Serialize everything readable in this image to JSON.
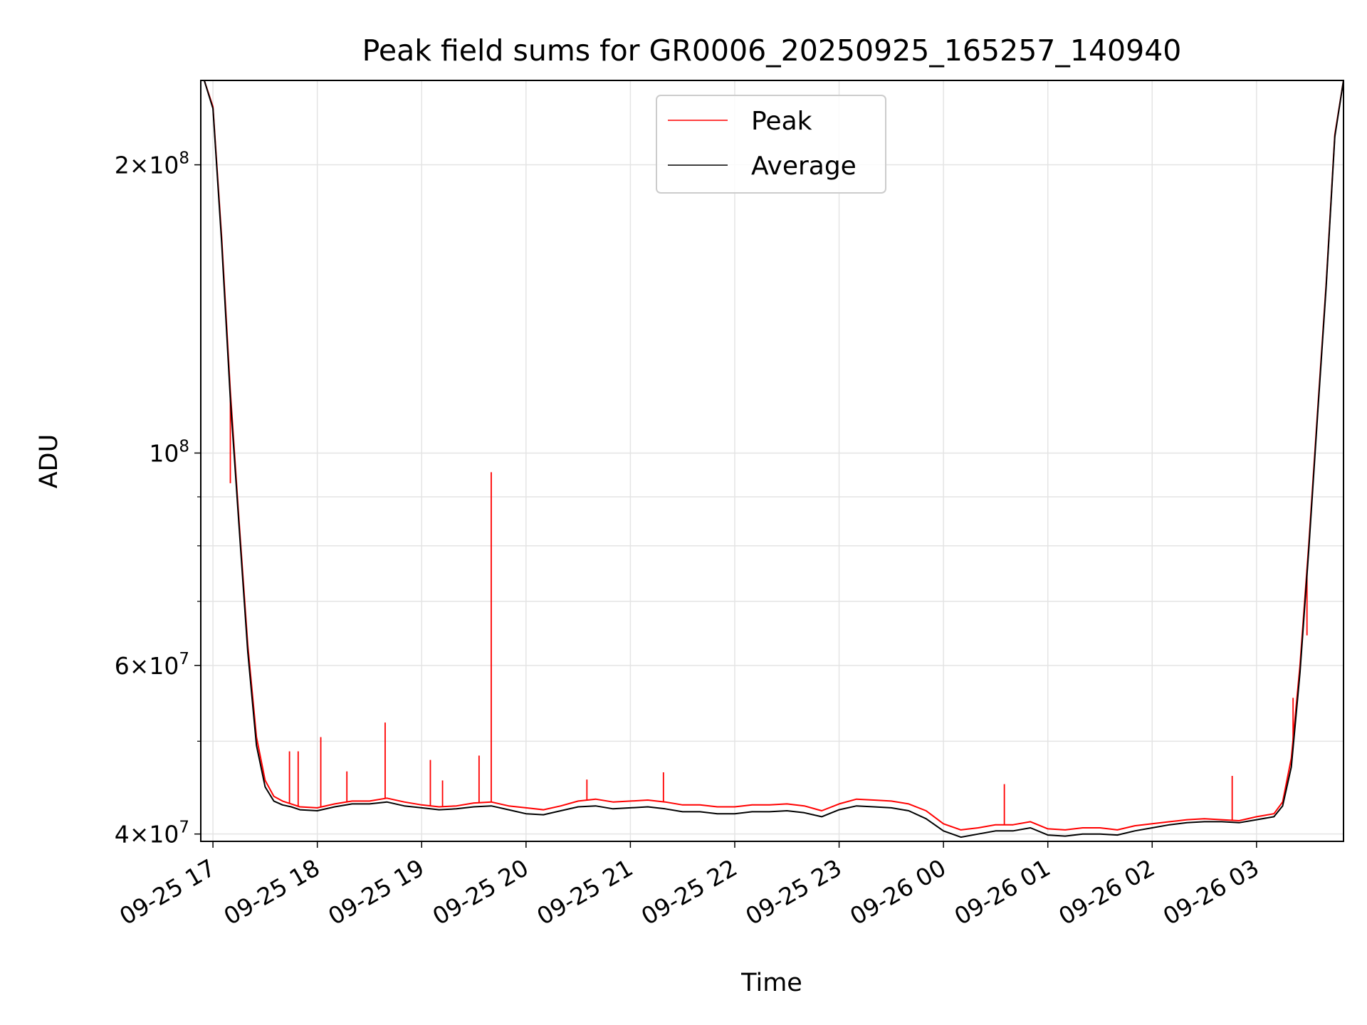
{
  "chart_data": {
    "type": "line",
    "title": "Peak field sums for GR0006_20250925_165257_140940",
    "xlabel": "Time",
    "ylabel": "ADU",
    "yscale": "log",
    "ylim": [
      39300000,
      245000000
    ],
    "xlim": [
      "2025-09-25 16:53",
      "2025-09-26 03:50"
    ],
    "grid": true,
    "legend_position": "top-center",
    "x_ticks": [
      "09-25 17",
      "09-25 18",
      "09-25 19",
      "09-25 20",
      "09-25 21",
      "09-25 22",
      "09-25 23",
      "09-26 00",
      "09-26 01",
      "09-26 02",
      "09-26 03"
    ],
    "y_ticks": [
      {
        "value": 40000000,
        "mant": "4",
        "exp": "7"
      },
      {
        "value": 60000000,
        "mant": "6",
        "exp": "7"
      },
      {
        "value": 100000000,
        "mant": "",
        "exp": "8"
      },
      {
        "value": 200000000,
        "mant": "2",
        "exp": "8"
      }
    ],
    "series": [
      {
        "name": "Peak",
        "color": "#ff0000",
        "x": [
          "2025-09-25 16:55",
          "2025-09-25 17:00",
          "2025-09-25 17:05",
          "2025-09-25 17:10",
          "2025-09-25 17:15",
          "2025-09-25 17:20",
          "2025-09-25 17:25",
          "2025-09-25 17:30",
          "2025-09-25 17:35",
          "2025-09-25 17:40",
          "2025-09-25 17:45",
          "2025-09-25 17:50",
          "2025-09-25 18:00",
          "2025-09-25 18:10",
          "2025-09-25 18:20",
          "2025-09-25 18:30",
          "2025-09-25 18:40",
          "2025-09-25 18:50",
          "2025-09-25 19:00",
          "2025-09-25 19:10",
          "2025-09-25 19:20",
          "2025-09-25 19:30",
          "2025-09-25 19:40",
          "2025-09-25 19:50",
          "2025-09-25 20:00",
          "2025-09-25 20:10",
          "2025-09-25 20:20",
          "2025-09-25 20:30",
          "2025-09-25 20:40",
          "2025-09-25 20:50",
          "2025-09-25 21:00",
          "2025-09-25 21:10",
          "2025-09-25 21:20",
          "2025-09-25 21:30",
          "2025-09-25 21:40",
          "2025-09-25 21:50",
          "2025-09-25 22:00",
          "2025-09-25 22:10",
          "2025-09-25 22:20",
          "2025-09-25 22:30",
          "2025-09-25 22:40",
          "2025-09-25 22:50",
          "2025-09-25 23:00",
          "2025-09-25 23:10",
          "2025-09-25 23:20",
          "2025-09-25 23:30",
          "2025-09-25 23:40",
          "2025-09-25 23:50",
          "2025-09-26 00:00",
          "2025-09-26 00:10",
          "2025-09-26 00:20",
          "2025-09-26 00:30",
          "2025-09-26 00:40",
          "2025-09-26 00:50",
          "2025-09-26 01:00",
          "2025-09-26 01:10",
          "2025-09-26 01:20",
          "2025-09-26 01:30",
          "2025-09-26 01:40",
          "2025-09-26 01:50",
          "2025-09-26 02:00",
          "2025-09-26 02:10",
          "2025-09-26 02:20",
          "2025-09-26 02:30",
          "2025-09-26 02:40",
          "2025-09-26 02:50",
          "2025-09-26 03:00",
          "2025-09-26 03:10",
          "2025-09-26 03:15",
          "2025-09-26 03:20",
          "2025-09-26 03:25",
          "2025-09-26 03:30",
          "2025-09-26 03:35",
          "2025-09-26 03:40",
          "2025-09-26 03:45",
          "2025-09-26 03:50"
        ],
        "values": [
          245000000,
          230000000,
          168000000,
          116000000,
          85000000,
          63000000,
          50500000,
          45500000,
          43800000,
          43300000,
          43000000,
          42700000,
          42600000,
          43000000,
          43300000,
          43300000,
          43600000,
          43200000,
          42900000,
          42700000,
          42800000,
          43100000,
          43200000,
          42800000,
          42600000,
          42400000,
          42800000,
          43300000,
          43500000,
          43200000,
          43300000,
          43400000,
          43200000,
          42900000,
          42900000,
          42700000,
          42700000,
          42900000,
          42900000,
          43000000,
          42800000,
          42300000,
          43000000,
          43500000,
          43400000,
          43300000,
          43000000,
          42300000,
          41000000,
          40400000,
          40600000,
          40900000,
          40900000,
          41200000,
          40500000,
          40400000,
          40600000,
          40600000,
          40400000,
          40800000,
          41000000,
          41200000,
          41400000,
          41500000,
          41400000,
          41300000,
          41700000,
          42000000,
          43200000,
          48000000,
          60000000,
          80000000,
          110000000,
          150000000,
          215000000,
          245000000
        ]
      },
      {
        "name": "Average",
        "color": "#000000",
        "x": [
          "2025-09-25 16:55",
          "2025-09-25 17:00",
          "2025-09-25 17:05",
          "2025-09-25 17:10",
          "2025-09-25 17:15",
          "2025-09-25 17:20",
          "2025-09-25 17:25",
          "2025-09-25 17:30",
          "2025-09-25 17:35",
          "2025-09-25 17:40",
          "2025-09-25 17:45",
          "2025-09-25 17:50",
          "2025-09-25 18:00",
          "2025-09-25 18:10",
          "2025-09-25 18:20",
          "2025-09-25 18:30",
          "2025-09-25 18:40",
          "2025-09-25 18:50",
          "2025-09-25 19:00",
          "2025-09-25 19:10",
          "2025-09-25 19:20",
          "2025-09-25 19:30",
          "2025-09-25 19:40",
          "2025-09-25 19:50",
          "2025-09-25 20:00",
          "2025-09-25 20:10",
          "2025-09-25 20:20",
          "2025-09-25 20:30",
          "2025-09-25 20:40",
          "2025-09-25 20:50",
          "2025-09-25 21:00",
          "2025-09-25 21:10",
          "2025-09-25 21:20",
          "2025-09-25 21:30",
          "2025-09-25 21:40",
          "2025-09-25 21:50",
          "2025-09-25 22:00",
          "2025-09-25 22:10",
          "2025-09-25 22:20",
          "2025-09-25 22:30",
          "2025-09-25 22:40",
          "2025-09-25 22:50",
          "2025-09-25 23:00",
          "2025-09-25 23:10",
          "2025-09-25 23:20",
          "2025-09-25 23:30",
          "2025-09-25 23:40",
          "2025-09-25 23:50",
          "2025-09-26 00:00",
          "2025-09-26 00:10",
          "2025-09-26 00:20",
          "2025-09-26 00:30",
          "2025-09-26 00:40",
          "2025-09-26 00:50",
          "2025-09-26 01:00",
          "2025-09-26 01:10",
          "2025-09-26 01:20",
          "2025-09-26 01:30",
          "2025-09-26 01:40",
          "2025-09-26 01:50",
          "2025-09-26 02:00",
          "2025-09-26 02:10",
          "2025-09-26 02:20",
          "2025-09-26 02:30",
          "2025-09-26 02:40",
          "2025-09-26 02:50",
          "2025-09-26 03:00",
          "2025-09-26 03:10",
          "2025-09-26 03:15",
          "2025-09-26 03:20",
          "2025-09-26 03:25",
          "2025-09-26 03:30",
          "2025-09-26 03:35",
          "2025-09-26 03:40",
          "2025-09-26 03:45",
          "2025-09-26 03:50"
        ],
        "values": [
          245000000,
          229000000,
          166000000,
          114000000,
          84000000,
          62000000,
          49500000,
          44800000,
          43300000,
          42900000,
          42700000,
          42400000,
          42300000,
          42700000,
          43000000,
          43000000,
          43200000,
          42800000,
          42600000,
          42400000,
          42500000,
          42700000,
          42800000,
          42400000,
          42000000,
          41900000,
          42300000,
          42700000,
          42800000,
          42500000,
          42600000,
          42700000,
          42500000,
          42200000,
          42200000,
          42000000,
          42000000,
          42200000,
          42200000,
          42300000,
          42100000,
          41700000,
          42400000,
          42800000,
          42700000,
          42600000,
          42300000,
          41500000,
          40300000,
          39700000,
          40000000,
          40300000,
          40300000,
          40600000,
          39900000,
          39800000,
          40000000,
          40000000,
          39900000,
          40300000,
          40600000,
          40900000,
          41100000,
          41200000,
          41200000,
          41100000,
          41400000,
          41700000,
          42800000,
          47000000,
          59000000,
          79000000,
          109000000,
          149000000,
          214000000,
          245000000
        ]
      }
    ],
    "annotations": [
      {
        "series": "Peak",
        "x": "2025-09-25 17:10",
        "value": 93000000
      },
      {
        "series": "Peak",
        "x": "2025-09-25 17:44",
        "value": 48800000
      },
      {
        "series": "Peak",
        "x": "2025-09-25 17:49",
        "value": 48800000
      },
      {
        "series": "Peak",
        "x": "2025-09-25 18:02",
        "value": 50500000
      },
      {
        "series": "Peak",
        "x": "2025-09-25 18:17",
        "value": 46500000
      },
      {
        "series": "Peak",
        "x": "2025-09-25 18:39",
        "value": 52300000
      },
      {
        "series": "Peak",
        "x": "2025-09-25 19:05",
        "value": 47800000
      },
      {
        "series": "Peak",
        "x": "2025-09-25 19:12",
        "value": 45500000
      },
      {
        "series": "Peak",
        "x": "2025-09-25 19:33",
        "value": 48300000
      },
      {
        "series": "Peak",
        "x": "2025-09-25 19:40",
        "value": 95500000
      },
      {
        "series": "Peak",
        "x": "2025-09-25 20:35",
        "value": 45600000
      },
      {
        "series": "Peak",
        "x": "2025-09-25 21:19",
        "value": 46400000
      },
      {
        "series": "Peak",
        "x": "2025-09-26 00:35",
        "value": 45100000
      },
      {
        "series": "Peak",
        "x": "2025-09-26 02:46",
        "value": 46000000
      },
      {
        "series": "Peak",
        "x": "2025-09-26 03:21",
        "value": 55500000
      },
      {
        "series": "Peak",
        "x": "2025-09-26 03:29",
        "value": 64500000
      }
    ]
  }
}
